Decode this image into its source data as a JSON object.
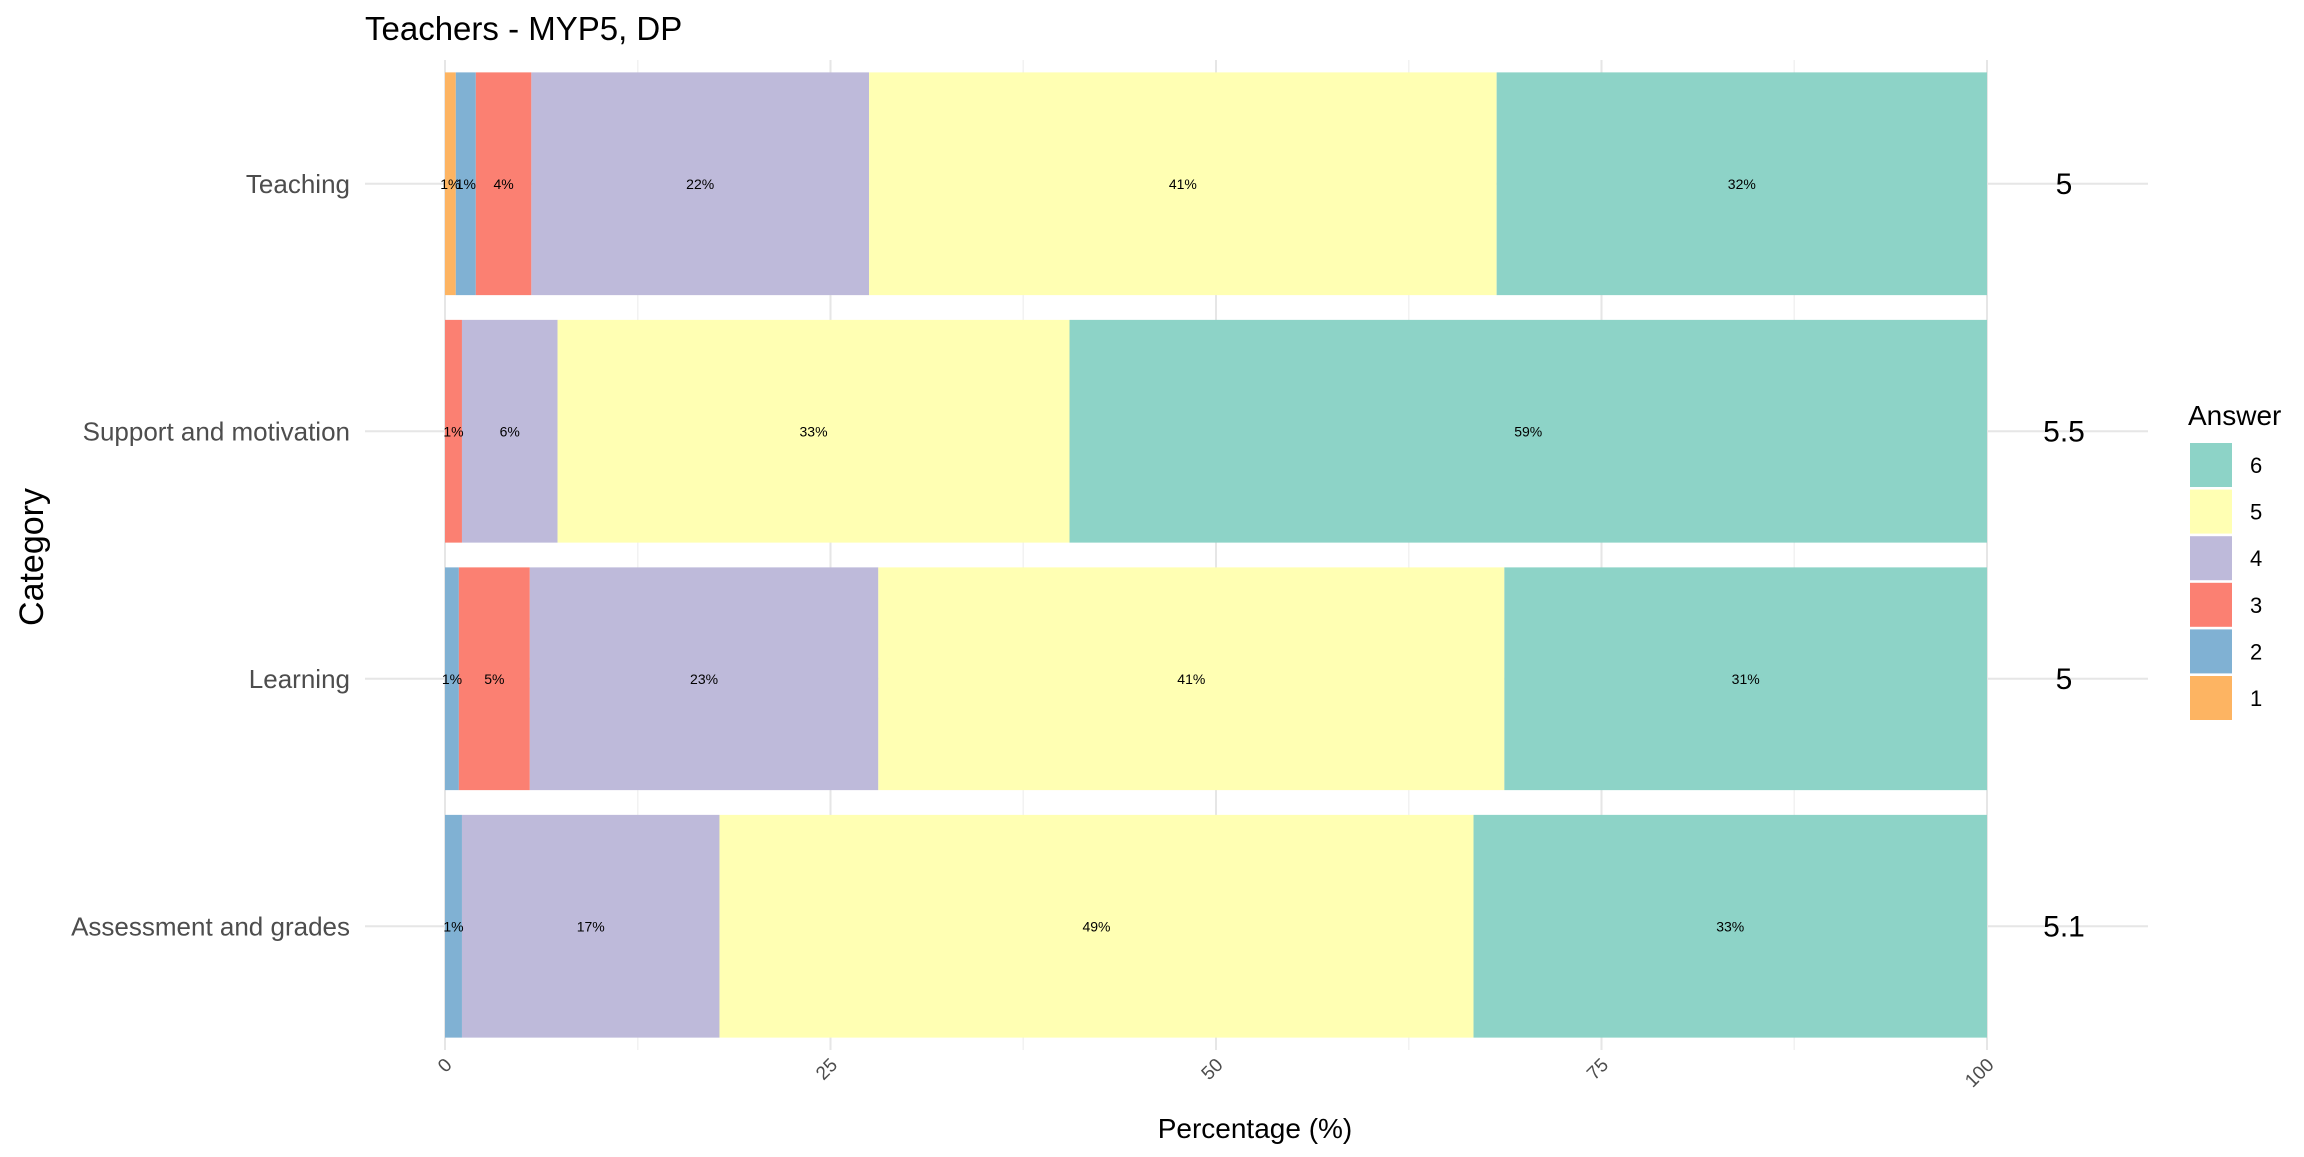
{
  "chart_data": {
    "type": "bar",
    "orientation": "horizontal",
    "stacked": true,
    "title": "Teachers - MYP5, DP",
    "xlabel": "Percentage (%)",
    "ylabel": "Category",
    "xlim": [
      0,
      100
    ],
    "x_ticks": [
      "0",
      "25",
      "50",
      "75",
      "100"
    ],
    "grid": true,
    "legend_position": "right",
    "legend_title": "Answer",
    "categories": [
      "Teaching",
      "Support and motivation",
      "Learning",
      "Assessment and grades"
    ],
    "series": [
      {
        "name": "1",
        "color": "#FDB462",
        "values": [
          0.7,
          0,
          0,
          0
        ],
        "labels": [
          "1%",
          "",
          "",
          ""
        ]
      },
      {
        "name": "2",
        "color": "#80B1D3",
        "values": [
          1.3,
          0,
          0.9,
          1.1
        ],
        "labels": [
          "1%",
          "",
          "1%",
          "1%"
        ]
      },
      {
        "name": "3",
        "color": "#FB8072",
        "values": [
          3.6,
          1.1,
          4.6,
          0
        ],
        "labels": [
          "4%",
          "1%",
          "5%",
          ""
        ]
      },
      {
        "name": "4",
        "color": "#BEBADA",
        "values": [
          21.9,
          6.2,
          22.6,
          16.7
        ],
        "labels": [
          "22%",
          "6%",
          "23%",
          "17%"
        ]
      },
      {
        "name": "5",
        "color": "#FFFFB3",
        "values": [
          40.7,
          33.2,
          40.6,
          48.9
        ],
        "labels": [
          "41%",
          "33%",
          "41%",
          "49%"
        ]
      },
      {
        "name": "6",
        "color": "#8DD3C7",
        "values": [
          31.8,
          59.5,
          31.3,
          33.3
        ],
        "labels": [
          "32%",
          "59%",
          "31%",
          "33%"
        ]
      }
    ],
    "means": [
      "5",
      "5.5",
      "5",
      "5.1"
    ]
  }
}
